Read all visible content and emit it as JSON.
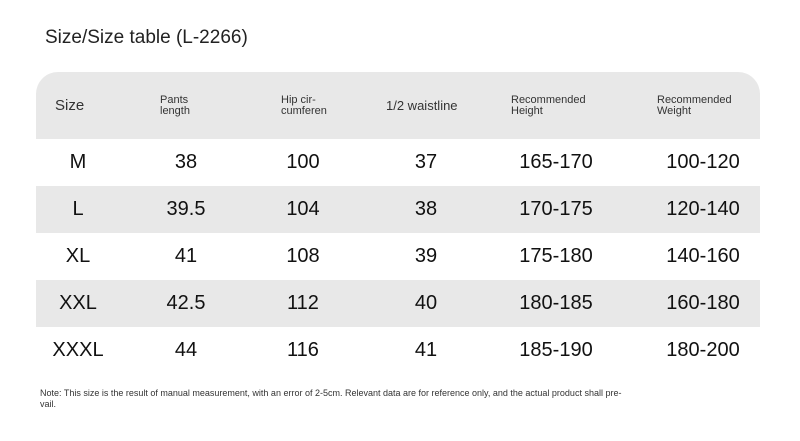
{
  "title": "Size/Size table (L-2266)",
  "table": {
    "header": [
      [
        "Size"
      ],
      [
        "Pants",
        "length"
      ],
      [
        "Hip cir-",
        "cumferen"
      ],
      [
        "1/2 waistline"
      ],
      [
        "Recommended",
        "Height"
      ],
      [
        "Recommended",
        "Weight"
      ]
    ],
    "rows": [
      [
        "M",
        "38",
        "100",
        "37",
        "165-170",
        "100-120"
      ],
      [
        "L",
        "39.5",
        "104",
        "38",
        "170-175",
        "120-140"
      ],
      [
        "XL",
        "41",
        "108",
        "39",
        "175-180",
        "140-160"
      ],
      [
        "XXL",
        "42.5",
        "112",
        "40",
        "180-185",
        "160-180"
      ],
      [
        "XXXL",
        "44",
        "116",
        "41",
        "185-190",
        "180-200"
      ]
    ]
  },
  "note": [
    "Note: This size is the result of manual measurement, with an error of 2-5cm. Relevant data are for reference only, and the actual product shall pre-",
    "vail."
  ]
}
